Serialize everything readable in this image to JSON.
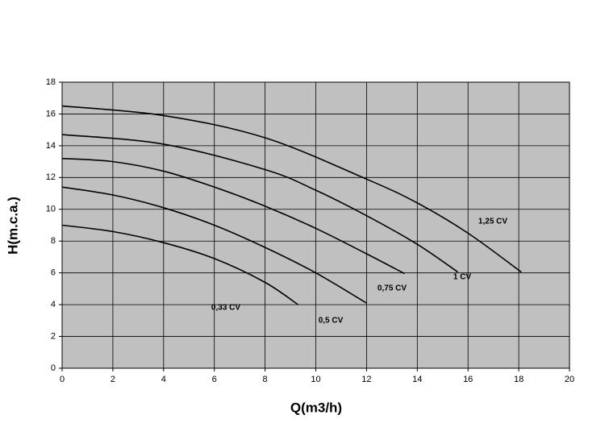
{
  "chart_data": {
    "type": "line",
    "x_label": "Q(m3/h)",
    "y_label": "H(m.c.a.)",
    "xlim": [
      0,
      20
    ],
    "xticks": [
      0,
      2,
      4,
      6,
      8,
      10,
      12,
      14,
      16,
      18,
      20
    ],
    "ylim": [
      0,
      18
    ],
    "yticks": [
      0,
      2,
      4,
      6,
      8,
      10,
      12,
      14,
      16,
      18
    ],
    "grid": true,
    "background": "#c0c0c0",
    "series": [
      {
        "name": "1,25 CV",
        "color": "#000000",
        "x": [
          0,
          4,
          8,
          12,
          14,
          16,
          18.1
        ],
        "values": [
          16.5,
          15.9,
          14.5,
          11.9,
          10.4,
          8.5,
          6.05
        ]
      },
      {
        "name": "1 CV",
        "color": "#000000",
        "x": [
          0,
          4,
          8,
          10,
          12,
          14,
          15.6
        ],
        "values": [
          14.7,
          14.1,
          12.5,
          11.2,
          9.6,
          7.8,
          6.05
        ]
      },
      {
        "name": "0,75 CV",
        "color": "#000000",
        "x": [
          0,
          2,
          4,
          6,
          8,
          10,
          12,
          13.5
        ],
        "values": [
          13.2,
          13.0,
          12.4,
          11.4,
          10.2,
          8.8,
          7.2,
          5.95
        ]
      },
      {
        "name": "0,5 CV",
        "color": "#000000",
        "x": [
          0,
          2,
          4,
          6,
          8,
          10,
          12
        ],
        "values": [
          11.4,
          10.9,
          10.1,
          9.0,
          7.6,
          6.0,
          4.1
        ]
      },
      {
        "name": "0,33 CV",
        "color": "#000000",
        "x": [
          0,
          2,
          4,
          6,
          8,
          9.3
        ],
        "values": [
          9.0,
          8.6,
          7.9,
          6.9,
          5.4,
          4.0
        ]
      }
    ]
  }
}
